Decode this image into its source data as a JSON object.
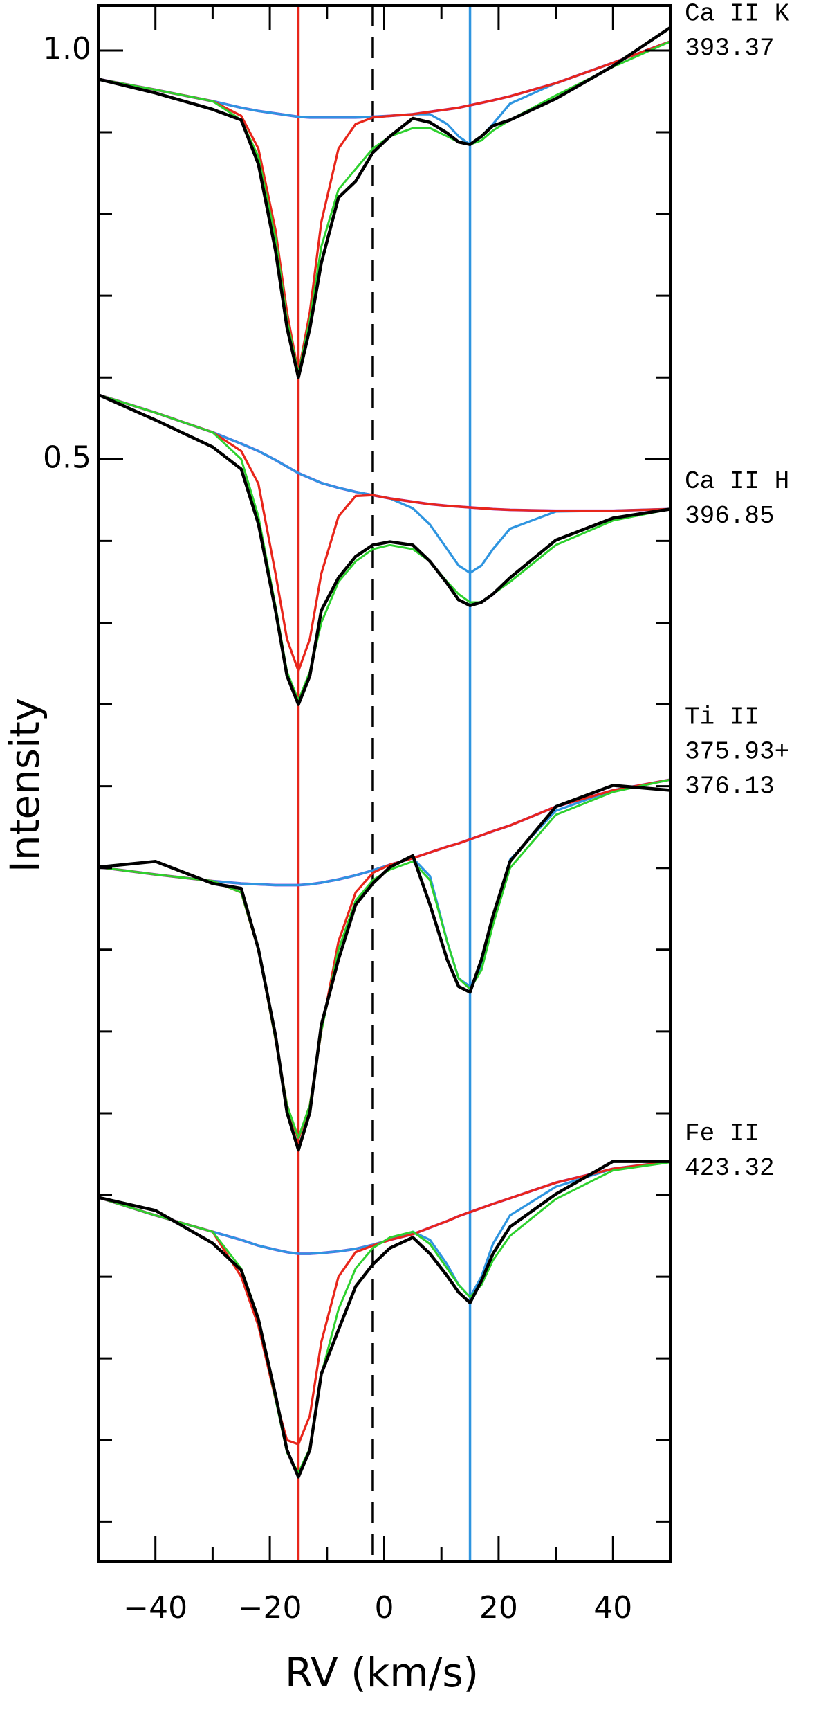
{
  "chart_data": {
    "type": "line",
    "xlabel": "RV (km/s)",
    "ylabel": "Intensity",
    "xlim": [
      -50,
      50
    ],
    "ylim": [
      -0.848,
      1.055
    ],
    "xticks": [
      {
        "value": -40,
        "label": "−40"
      },
      {
        "value": -20,
        "label": "−20"
      },
      0,
      20,
      40
    ],
    "xminor": [
      -30,
      -10,
      10,
      30
    ],
    "yticks": [
      {
        "value": 1.0,
        "label": "1.0"
      },
      0.5
    ],
    "yminor": [
      0.9,
      0.8,
      0.7,
      0.6,
      0.4,
      0.3,
      0.2,
      0.1,
      0,
      -0.1,
      -0.2,
      -0.3,
      -0.4,
      -0.5,
      -0.6,
      -0.7,
      -0.8
    ],
    "vlines": [
      {
        "value": -15,
        "color": "#e8261b",
        "dashed": false
      },
      {
        "value": -2,
        "color": "#000000",
        "dashed": true
      },
      {
        "value": 15,
        "color": "#2f95e0",
        "dashed": false
      }
    ],
    "x": [
      -50,
      -40,
      -30,
      -25,
      -22,
      -19,
      -17,
      -15,
      -13,
      -11,
      -8,
      -5,
      -2,
      1,
      5,
      8,
      11,
      13,
      15,
      17,
      19,
      22,
      30,
      40,
      50
    ],
    "panels": [
      {
        "label": [
          "Ca II K",
          "393.37"
        ],
        "series": [
          {
            "color": "#000000",
            "width": 3,
            "values": [
              0.965,
              0.948,
              0.928,
              0.915,
              0.861,
              0.755,
              0.661,
              0.6,
              0.66,
              0.74,
              0.82,
              0.84,
              0.875,
              0.895,
              0.917,
              0.912,
              0.899,
              0.888,
              0.885,
              0.895,
              0.908,
              0.915,
              0.941,
              0.981,
              1.028
            ]
          },
          {
            "color": "#2ed12e",
            "width": 2,
            "values": [
              0.965,
              0.952,
              0.938,
              0.915,
              0.87,
              0.77,
              0.67,
              0.605,
              0.67,
              0.76,
              0.83,
              0.855,
              0.88,
              0.895,
              0.905,
              0.905,
              0.895,
              0.888,
              0.885,
              0.89,
              0.902,
              0.915,
              0.945,
              0.98,
              1.011
            ]
          },
          {
            "color": "#e8261b",
            "width": 2.2,
            "values": [
              0.965,
              0.952,
              0.938,
              0.92,
              0.88,
              0.78,
              0.68,
              0.605,
              0.68,
              0.79,
              0.88,
              0.91,
              0.918,
              0.92,
              0.922,
              0.925,
              0.928,
              0.93,
              0.933,
              0.936,
              0.939,
              0.944,
              0.96,
              0.985,
              1.011
            ]
          },
          {
            "color": "#2f95e0",
            "width": 2.2,
            "values": [
              0.965,
              0.952,
              0.938,
              0.93,
              0.926,
              0.923,
              0.921,
              0.919,
              0.918,
              0.918,
              0.918,
              0.918,
              0.919,
              0.92,
              0.922,
              0.922,
              0.91,
              0.895,
              0.885,
              0.895,
              0.91,
              0.935,
              0.96,
              0.985,
              1.011
            ]
          },
          {
            "color": "#9933dd",
            "width": 2.5,
            "values": [
              0.965,
              0.952,
              0.938,
              0.93,
              0.926,
              0.923,
              0.921,
              0.919,
              0.918,
              0.918,
              0.918,
              0.918,
              0.919,
              0.92,
              0.922,
              0.925,
              0.928,
              0.93,
              0.933,
              0.936,
              0.939,
              0.944,
              0.96,
              0.985,
              1.011
            ]
          }
        ]
      },
      {
        "label": [
          "Ca II H",
          "396.85"
        ],
        "series": [
          {
            "color": "#000000",
            "width": 3,
            "values": [
              0.579,
              0.548,
              0.515,
              0.488,
              0.421,
              0.315,
              0.235,
              0.2,
              0.235,
              0.315,
              0.355,
              0.381,
              0.395,
              0.399,
              0.395,
              0.375,
              0.348,
              0.328,
              0.321,
              0.325,
              0.335,
              0.355,
              0.401,
              0.428,
              0.439
            ]
          },
          {
            "color": "#2ed12e",
            "width": 2,
            "values": [
              0.579,
              0.557,
              0.533,
              0.5,
              0.43,
              0.32,
              0.24,
              0.205,
              0.24,
              0.3,
              0.35,
              0.375,
              0.39,
              0.395,
              0.39,
              0.375,
              0.35,
              0.335,
              0.325,
              0.325,
              0.335,
              0.35,
              0.395,
              0.425,
              0.439
            ]
          },
          {
            "color": "#e8261b",
            "width": 2.2,
            "values": [
              0.579,
              0.557,
              0.533,
              0.51,
              0.47,
              0.36,
              0.28,
              0.241,
              0.28,
              0.36,
              0.43,
              0.455,
              0.456,
              0.452,
              0.448,
              0.445,
              0.443,
              0.442,
              0.441,
              0.44,
              0.439,
              0.438,
              0.437,
              0.437,
              0.439
            ]
          },
          {
            "color": "#2f95e0",
            "width": 2.2,
            "values": [
              0.579,
              0.557,
              0.533,
              0.519,
              0.51,
              0.499,
              0.491,
              0.483,
              0.477,
              0.471,
              0.465,
              0.46,
              0.456,
              0.452,
              0.44,
              0.42,
              0.39,
              0.37,
              0.361,
              0.37,
              0.39,
              0.415,
              0.436,
              0.437,
              0.439
            ]
          },
          {
            "color": "#9933dd",
            "width": 2.5,
            "values": [
              0.579,
              0.557,
              0.533,
              0.519,
              0.51,
              0.499,
              0.491,
              0.483,
              0.477,
              0.471,
              0.465,
              0.46,
              0.456,
              0.452,
              0.448,
              0.445,
              0.443,
              0.442,
              0.441,
              0.44,
              0.439,
              0.438,
              0.437,
              0.437,
              0.439
            ]
          }
        ]
      },
      {
        "label": [
          "Ti II",
          "375.93+",
          "376.13"
        ],
        "series": [
          {
            "color": "#000000",
            "width": 3,
            "values": [
              0.001,
              0.008,
              -0.019,
              -0.025,
              -0.099,
              -0.205,
              -0.299,
              -0.345,
              -0.299,
              -0.192,
              -0.112,
              -0.045,
              -0.019,
              0.001,
              0.015,
              -0.045,
              -0.112,
              -0.145,
              -0.152,
              -0.112,
              -0.059,
              0.008,
              0.075,
              0.101,
              0.095
            ]
          },
          {
            "color": "#2ed12e",
            "width": 2,
            "values": [
              0.001,
              -0.008,
              -0.016,
              -0.03,
              -0.1,
              -0.21,
              -0.29,
              -0.33,
              -0.29,
              -0.2,
              -0.1,
              -0.04,
              -0.015,
              -0.002,
              0.008,
              -0.015,
              -0.09,
              -0.135,
              -0.148,
              -0.125,
              -0.07,
              0.0,
              0.065,
              0.093,
              0.108
            ]
          },
          {
            "color": "#e8261b",
            "width": 2.2,
            "values": [
              0.001,
              -0.008,
              -0.016,
              -0.03,
              -0.1,
              -0.21,
              -0.29,
              -0.332,
              -0.29,
              -0.2,
              -0.09,
              -0.03,
              -0.006,
              0.004,
              0.012,
              0.019,
              0.026,
              0.03,
              0.035,
              0.04,
              0.045,
              0.052,
              0.075,
              0.095,
              0.108
            ]
          },
          {
            "color": "#2f95e0",
            "width": 2.2,
            "values": [
              0.001,
              -0.008,
              -0.016,
              -0.019,
              -0.02,
              -0.021,
              -0.021,
              -0.021,
              -0.02,
              -0.018,
              -0.014,
              -0.009,
              -0.003,
              0.004,
              0.012,
              -0.01,
              -0.09,
              -0.135,
              -0.145,
              -0.12,
              -0.06,
              0.01,
              0.07,
              0.095,
              0.108
            ]
          },
          {
            "color": "#9933dd",
            "width": 2.5,
            "values": [
              0.001,
              -0.008,
              -0.016,
              -0.019,
              -0.02,
              -0.021,
              -0.021,
              -0.021,
              -0.02,
              -0.018,
              -0.014,
              -0.009,
              -0.003,
              0.004,
              0.012,
              0.019,
              0.026,
              0.03,
              0.035,
              0.04,
              0.045,
              0.052,
              0.075,
              0.095,
              0.108
            ]
          }
        ]
      },
      {
        "label": [
          "Fe II",
          "423.32"
        ],
        "series": [
          {
            "color": "#000000",
            "width": 3,
            "values": [
              -0.403,
              -0.419,
              -0.459,
              -0.492,
              -0.552,
              -0.645,
              -0.712,
              -0.745,
              -0.712,
              -0.619,
              -0.565,
              -0.512,
              -0.485,
              -0.465,
              -0.452,
              -0.472,
              -0.499,
              -0.519,
              -0.532,
              -0.505,
              -0.472,
              -0.439,
              -0.399,
              -0.359,
              -0.359
            ]
          },
          {
            "color": "#2ed12e",
            "width": 2,
            "values": [
              -0.403,
              -0.425,
              -0.445,
              -0.49,
              -0.55,
              -0.65,
              -0.715,
              -0.74,
              -0.71,
              -0.62,
              -0.54,
              -0.49,
              -0.465,
              -0.452,
              -0.445,
              -0.46,
              -0.49,
              -0.51,
              -0.525,
              -0.51,
              -0.48,
              -0.45,
              -0.405,
              -0.37,
              -0.36
            ]
          },
          {
            "color": "#e8261b",
            "width": 2.2,
            "values": [
              -0.403,
              -0.425,
              -0.445,
              -0.5,
              -0.56,
              -0.65,
              -0.7,
              -0.705,
              -0.67,
              -0.58,
              -0.5,
              -0.47,
              -0.462,
              -0.455,
              -0.448,
              -0.44,
              -0.432,
              -0.426,
              -0.421,
              -0.416,
              -0.411,
              -0.404,
              -0.385,
              -0.368,
              -0.359
            ]
          },
          {
            "color": "#2f95e0",
            "width": 2.2,
            "values": [
              -0.403,
              -0.425,
              -0.445,
              -0.455,
              -0.462,
              -0.467,
              -0.47,
              -0.472,
              -0.472,
              -0.471,
              -0.469,
              -0.466,
              -0.461,
              -0.455,
              -0.445,
              -0.455,
              -0.485,
              -0.51,
              -0.525,
              -0.5,
              -0.46,
              -0.425,
              -0.39,
              -0.368,
              -0.359
            ]
          },
          {
            "color": "#9933dd",
            "width": 2.5,
            "values": [
              -0.403,
              -0.425,
              -0.445,
              -0.455,
              -0.462,
              -0.467,
              -0.47,
              -0.472,
              -0.472,
              -0.471,
              -0.469,
              -0.466,
              -0.461,
              -0.455,
              -0.448,
              -0.44,
              -0.432,
              -0.426,
              -0.421,
              -0.416,
              -0.411,
              -0.404,
              -0.385,
              -0.368,
              -0.359
            ]
          }
        ]
      }
    ]
  }
}
